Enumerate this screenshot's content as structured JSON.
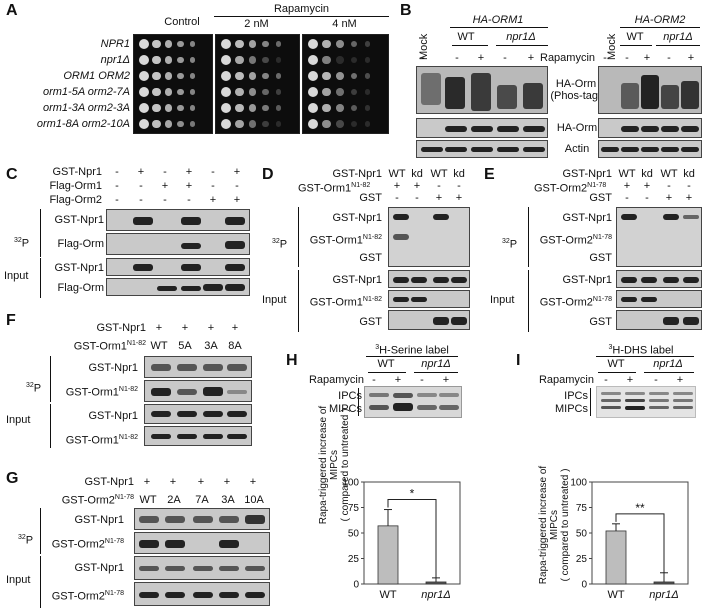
{
  "panels": {
    "A": {
      "label": "A",
      "header_control": "Control",
      "header_rapamycin": "Rapamycin",
      "header_2nm": "2 nM",
      "header_4nm": "4 nM",
      "strains": [
        "NPR1",
        "npr1Δ",
        "ORM1 ORM2",
        "orm1-5A orm2-7A",
        "orm1-3A orm2-3A",
        "orm1-8A orm2-10A"
      ]
    },
    "B": {
      "label": "B",
      "mock": "Mock",
      "orm1_title": "HA-ORM1",
      "orm2_title": "HA-ORM2",
      "wt": "WT",
      "npr1": "npr1Δ",
      "rapamycin": "Rapamycin",
      "signs_left": [
        "-",
        "-",
        "+",
        "-",
        "+"
      ],
      "signs_right": [
        "-",
        "-",
        "+",
        "-",
        "+"
      ],
      "blot_phostag": "HA-Orm\n(Phos-tag)",
      "blot_haorm": "HA-Orm",
      "blot_actin": "Actin"
    },
    "C": {
      "label": "C",
      "rows": [
        {
          "name": "GST-Npr1",
          "signs": [
            "-",
            "+",
            "-",
            "+",
            "-",
            "+"
          ]
        },
        {
          "name": "Flag-Orm1",
          "signs": [
            "-",
            "-",
            "+",
            "+",
            "-",
            "-"
          ]
        },
        {
          "name": "Flag-Orm2",
          "signs": [
            "-",
            "-",
            "-",
            "-",
            "+",
            "+"
          ]
        }
      ],
      "p32": "32P",
      "input": "Input",
      "blots": [
        "GST-Npr1",
        "Flag-Orm",
        "GST-Npr1",
        "Flag-Orm"
      ]
    },
    "D": {
      "label": "D",
      "row1": "GST-Npr1",
      "row1_cols": [
        "WT",
        "kd",
        "WT",
        "kd"
      ],
      "row2": "GST-Orm1N1-82",
      "row2_signs": [
        "+",
        "+",
        "-",
        "-"
      ],
      "row3": "GST",
      "row3_signs": [
        "-",
        "-",
        "+",
        "+"
      ],
      "p32": "32P",
      "input": "Input",
      "blots": [
        "GST-Npr1",
        "GST-Orm1N1-82",
        "GST",
        "GST-Npr1",
        "GST-Orm1N1-82",
        "GST"
      ]
    },
    "E": {
      "label": "E",
      "row1": "GST-Npr1",
      "row1_cols": [
        "WT",
        "kd",
        "WT",
        "kd"
      ],
      "row2": "GST-Orm2N1-78",
      "row2_signs": [
        "+",
        "+",
        "-",
        "-"
      ],
      "row3": "GST",
      "row3_signs": [
        "-",
        "-",
        "+",
        "+"
      ],
      "p32": "32P",
      "input": "Input",
      "blots": [
        "GST-Npr1",
        "GST-Orm2N1-78",
        "GST",
        "GST-Npr1",
        "GST-Orm2N1-78",
        "GST"
      ]
    },
    "F": {
      "label": "F",
      "row1": "GST-Npr1",
      "row1_signs": [
        "+",
        "+",
        "+",
        "+"
      ],
      "row2": "GST-Orm1N1-82",
      "row2_cols": [
        "WT",
        "5A",
        "3A",
        "8A"
      ],
      "p32": "32P",
      "input": "Input",
      "blots": [
        "GST-Npr1",
        "GST-Orm1N1-82",
        "GST-Npr1",
        "GST-Orm1N1-82"
      ]
    },
    "G": {
      "label": "G",
      "row1": "GST-Npr1",
      "row1_signs": [
        "+",
        "+",
        "+",
        "+",
        "+"
      ],
      "row2": "GST-Orm2N1-78",
      "row2_cols": [
        "WT",
        "2A",
        "7A",
        "3A",
        "10A"
      ],
      "p32": "32P",
      "input": "Input",
      "blots": [
        "GST-Npr1",
        "GST-Orm2N1-78",
        "GST-Npr1",
        "GST-Orm2N1-78"
      ]
    },
    "H": {
      "label": "H",
      "header": "3H-Serine label",
      "wt": "WT",
      "npr1": "npr1Δ",
      "rapamycin": "Rapamycin",
      "signs": [
        "-",
        "+",
        "-",
        "+"
      ],
      "ipcs": "IPCs",
      "mipcs": "MIPCs"
    },
    "I": {
      "label": "I",
      "header": "3H-DHS label",
      "wt": "WT",
      "npr1": "npr1Δ",
      "rapamycin": "Rapamycin",
      "signs": [
        "-",
        "+",
        "-",
        "+"
      ],
      "ipcs": "IPCs",
      "mipcs": "MIPCs"
    }
  },
  "chart_data": [
    {
      "type": "bar",
      "panel": "H",
      "categories": [
        "WT",
        "npr1Δ"
      ],
      "values": [
        57,
        2
      ],
      "errors": [
        16,
        4
      ],
      "ylabel": "Rapa-triggered increase of MIPCs\n( compared to untreated )",
      "yticks": [
        0,
        25,
        50,
        75,
        100
      ],
      "ylim": [
        0,
        100
      ],
      "significance": "*",
      "bar_colors": [
        "#bdbdbd",
        "#555555"
      ]
    },
    {
      "type": "bar",
      "panel": "I",
      "categories": [
        "WT",
        "npr1Δ"
      ],
      "values": [
        52,
        2
      ],
      "errors": [
        7,
        9
      ],
      "ylabel": "Rapa-triggered increase of MIPCs\n( compared to untreated )",
      "yticks": [
        0,
        25,
        50,
        75,
        100
      ],
      "ylim": [
        0,
        100
      ],
      "significance": "**",
      "bar_colors": [
        "#bdbdbd",
        "#555555"
      ]
    }
  ]
}
